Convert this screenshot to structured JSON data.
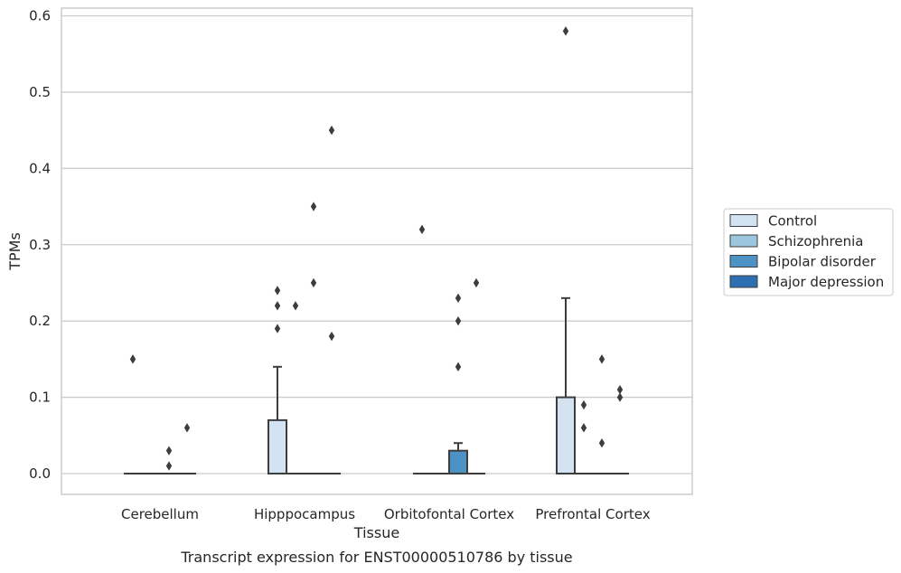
{
  "chart_data": {
    "type": "box",
    "title": "",
    "caption": "Transcript expression for ENST00000510786 by tissue",
    "xlabel": "Tissue",
    "ylabel": "TPMs",
    "ylim": [
      -0.03,
      0.61
    ],
    "yticks": [
      "0.0",
      "0.1",
      "0.2",
      "0.3",
      "0.4",
      "0.5",
      "0.6"
    ],
    "grid": "horizontal",
    "legend_position": "right",
    "categories": [
      "Cerebellum",
      "Hipppocampus",
      "Orbitofontal Cortex",
      "Prefrontal Cortex"
    ],
    "series": [
      {
        "name": "Control",
        "color": "#d4e3f2"
      },
      {
        "name": "Schizophrenia",
        "color": "#9cc5de"
      },
      {
        "name": "Bipolar disorder",
        "color": "#4d92c4"
      },
      {
        "name": "Major depression",
        "color": "#2d6fb0"
      }
    ],
    "boxes": [
      {
        "category": 0,
        "series": 0,
        "q1": 0,
        "median": 0,
        "q3": 0,
        "whislo": 0,
        "whishi": 0,
        "fliers": [
          0.15
        ]
      },
      {
        "category": 0,
        "series": 1,
        "q1": 0,
        "median": 0,
        "q3": 0,
        "whislo": 0,
        "whishi": 0,
        "fliers": []
      },
      {
        "category": 0,
        "series": 2,
        "q1": 0,
        "median": 0,
        "q3": 0,
        "whislo": 0,
        "whishi": 0,
        "fliers": [
          0.03,
          0.01
        ]
      },
      {
        "category": 0,
        "series": 3,
        "q1": 0,
        "median": 0,
        "q3": 0,
        "whislo": 0,
        "whishi": 0,
        "fliers": [
          0.06
        ]
      },
      {
        "category": 1,
        "series": 0,
        "q1": 0,
        "median": 0,
        "q3": 0.07,
        "whislo": 0,
        "whishi": 0.14,
        "fliers": [
          0.24,
          0.22,
          0.19
        ]
      },
      {
        "category": 1,
        "series": 1,
        "q1": 0,
        "median": 0,
        "q3": 0,
        "whislo": 0,
        "whishi": 0,
        "fliers": [
          0.22
        ]
      },
      {
        "category": 1,
        "series": 2,
        "q1": 0,
        "median": 0,
        "q3": 0,
        "whislo": 0,
        "whishi": 0,
        "fliers": [
          0.35,
          0.25
        ]
      },
      {
        "category": 1,
        "series": 3,
        "q1": 0,
        "median": 0,
        "q3": 0,
        "whislo": 0,
        "whishi": 0,
        "fliers": [
          0.45,
          0.18
        ]
      },
      {
        "category": 2,
        "series": 0,
        "q1": 0,
        "median": 0,
        "q3": 0,
        "whislo": 0,
        "whishi": 0,
        "fliers": [
          0.32
        ]
      },
      {
        "category": 2,
        "series": 1,
        "q1": 0,
        "median": 0,
        "q3": 0,
        "whislo": 0,
        "whishi": 0,
        "fliers": []
      },
      {
        "category": 2,
        "series": 2,
        "q1": 0,
        "median": 0,
        "q3": 0.03,
        "whislo": 0,
        "whishi": 0.04,
        "fliers": [
          0.23,
          0.2,
          0.14
        ]
      },
      {
        "category": 2,
        "series": 3,
        "q1": 0,
        "median": 0,
        "q3": 0,
        "whislo": 0,
        "whishi": 0,
        "fliers": [
          0.25
        ]
      },
      {
        "category": 3,
        "series": 0,
        "q1": 0,
        "median": 0,
        "q3": 0.1,
        "whislo": 0,
        "whishi": 0.23,
        "fliers": [
          0.58
        ]
      },
      {
        "category": 3,
        "series": 1,
        "q1": 0,
        "median": 0,
        "q3": 0,
        "whislo": 0,
        "whishi": 0,
        "fliers": [
          0.09,
          0.06
        ]
      },
      {
        "category": 3,
        "series": 2,
        "q1": 0,
        "median": 0,
        "q3": 0,
        "whislo": 0,
        "whishi": 0,
        "fliers": [
          0.15,
          0.04
        ]
      },
      {
        "category": 3,
        "series": 3,
        "q1": 0,
        "median": 0,
        "q3": 0,
        "whislo": 0,
        "whishi": 0,
        "fliers": [
          0.11,
          0.1
        ]
      }
    ]
  }
}
